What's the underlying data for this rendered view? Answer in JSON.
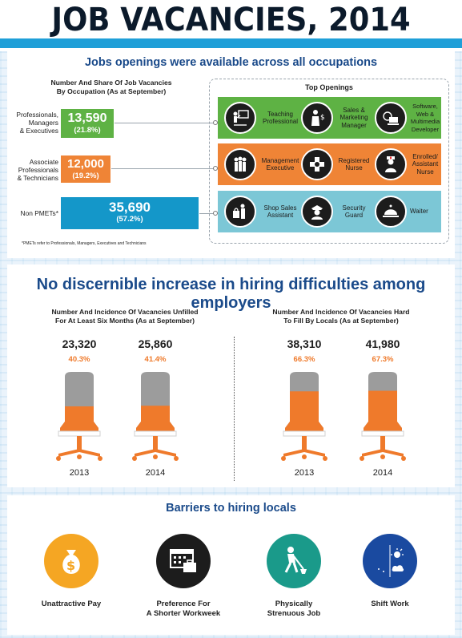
{
  "title": "JOB VACANCIES, 2014",
  "section1": {
    "heading": "Jobs openings were available across all occupations",
    "occupation_chart_title_1": "Number And Share Of Job Vacancies",
    "occupation_chart_title_2": "By Occupation (As at September)",
    "occupations": [
      {
        "label_lines": [
          "Professionals,",
          "Managers",
          "& Executives"
        ],
        "value": "13,590",
        "share": "(21.8%)",
        "color": "#5eb244"
      },
      {
        "label_lines": [
          "Associate",
          "Professionals",
          "& Technicians"
        ],
        "value": "12,000",
        "share": "(19.2%)",
        "color": "#ef8436"
      },
      {
        "label_lines": [
          "Non PMETs*"
        ],
        "value": "35,690",
        "share": "(57.2%)",
        "color": "#1497c9"
      }
    ],
    "top_openings_title": "Top Openings",
    "top_openings": [
      [
        {
          "icon": "teacher-icon",
          "label": "Teaching Professional"
        },
        {
          "icon": "sales-manager-icon",
          "label": "Sales & Marketing Manager"
        },
        {
          "icon": "software-developer-icon",
          "label": "Software, Web & Multimedia Developer"
        }
      ],
      [
        {
          "icon": "management-executive-icon",
          "label": "Management Executive"
        },
        {
          "icon": "nurse-cross-icon",
          "label": "Registered Nurse"
        },
        {
          "icon": "assistant-nurse-icon",
          "label": "Enrolled/ Assistant Nurse"
        }
      ],
      [
        {
          "icon": "shop-assistant-icon",
          "label": "Shop Sales Assistant"
        },
        {
          "icon": "security-guard-icon",
          "label": "Security Guard"
        },
        {
          "icon": "waiter-cloche-icon",
          "label": "Waiter"
        }
      ]
    ],
    "footnote": "*PMETs refer to Professionals, Managers, Executives and Technicians"
  },
  "section2": {
    "heading": "No discernible increase in hiring difficulties among employers",
    "left_title_1": "Number And Incidence Of Vacancies Unfilled",
    "left_title_2": "For At Least Six Months (As at September)",
    "right_title_1": "Number And Incidence Of Vacancies Hard",
    "right_title_2": "To Fill By Locals (As at September)"
  },
  "chart_data": [
    {
      "type": "table",
      "title": "Number And Incidence Of Vacancies Unfilled For At Least Six Months (As at September)",
      "categories": [
        "2013",
        "2014"
      ],
      "values": [
        23320,
        25860
      ],
      "value_labels": [
        "23,320",
        "25,860"
      ],
      "incidence": [
        40.3,
        41.4
      ],
      "incidence_labels": [
        "40.3%",
        "41.4%"
      ]
    },
    {
      "type": "table",
      "title": "Number And Incidence Of Vacancies Hard To Fill By Locals (As at September)",
      "categories": [
        "2013",
        "2014"
      ],
      "values": [
        38310,
        41980
      ],
      "value_labels": [
        "38,310",
        "41,980"
      ],
      "incidence": [
        66.3,
        67.3
      ],
      "incidence_labels": [
        "66.3%",
        "67.3%"
      ]
    }
  ],
  "section3": {
    "heading": "Barriers to hiring locals",
    "barriers": [
      {
        "icon": "money-bag-icon",
        "label_1": "Unattractive Pay",
        "label_2": "",
        "color": "#f5a623"
      },
      {
        "icon": "calendar-briefcase-icon",
        "label_1": "Preference For",
        "label_2": "A Shorter Workweek",
        "color": "#1c1c1c"
      },
      {
        "icon": "construction-worker-icon",
        "label_1": "Physically",
        "label_2": "Strenuous Job",
        "color": "#1a9a8a"
      },
      {
        "icon": "day-night-icon",
        "label_1": "Shift Work",
        "label_2": "",
        "color": "#1a4aa0"
      }
    ]
  },
  "colors": {
    "heading": "#1a4a8a",
    "accent_orange": "#ef7a2b",
    "ribbon_blue": "#1f9fd8"
  }
}
